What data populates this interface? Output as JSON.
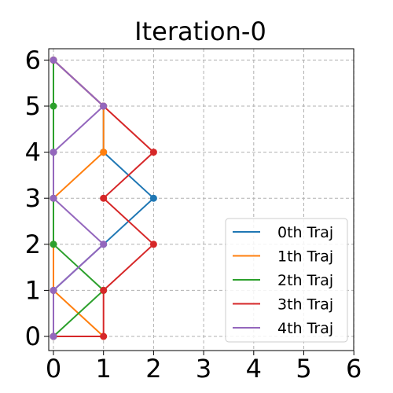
{
  "chart_data": {
    "type": "line",
    "title": "Iteration-0",
    "xlabel": "",
    "ylabel": "",
    "xlim": [
      0,
      6
    ],
    "ylim": [
      0,
      6
    ],
    "xticks": [
      "0",
      "1",
      "2",
      "3",
      "4",
      "5",
      "6"
    ],
    "yticks": [
      "0",
      "1",
      "2",
      "3",
      "4",
      "5",
      "6"
    ],
    "grid": true,
    "legend_position": "lower-right",
    "series": [
      {
        "name": "0th Traj",
        "color": "#1f77b4",
        "points": [
          [
            0,
            6
          ],
          [
            1,
            5
          ],
          [
            1,
            4
          ],
          [
            2,
            3
          ],
          [
            1,
            2
          ],
          [
            0,
            1
          ],
          [
            0,
            0
          ]
        ]
      },
      {
        "name": "1th Traj",
        "color": "#ff7f0e",
        "points": [
          [
            0,
            6
          ],
          [
            1,
            5
          ],
          [
            1,
            4
          ],
          [
            0,
            3
          ],
          [
            0,
            2
          ],
          [
            0,
            1
          ],
          [
            1,
            0
          ]
        ]
      },
      {
        "name": "2th Traj",
        "color": "#2ca02c",
        "points": [
          [
            0,
            6
          ],
          [
            0,
            5
          ],
          [
            0,
            4
          ],
          [
            0,
            3
          ],
          [
            0,
            2
          ],
          [
            1,
            1
          ],
          [
            0,
            0
          ]
        ]
      },
      {
        "name": "3th Traj",
        "color": "#d62728",
        "points": [
          [
            0,
            6
          ],
          [
            1,
            5
          ],
          [
            2,
            4
          ],
          [
            1,
            3
          ],
          [
            2,
            2
          ],
          [
            1,
            1
          ],
          [
            1,
            0
          ],
          [
            0,
            0
          ]
        ]
      },
      {
        "name": "4th Traj",
        "color": "#9467bd",
        "points": [
          [
            0,
            6
          ],
          [
            1,
            5
          ],
          [
            0,
            4
          ],
          [
            0,
            3
          ],
          [
            1,
            2
          ],
          [
            0,
            1
          ],
          [
            0,
            0
          ]
        ]
      }
    ]
  }
}
